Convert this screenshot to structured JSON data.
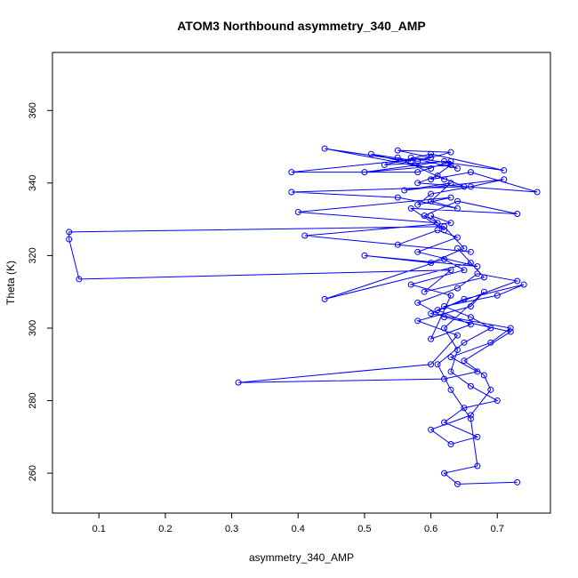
{
  "chart_data": {
    "type": "line",
    "title": "ATOM3 Northbound asymmetry_340_AMP",
    "xlabel": "asymmetry_340_AMP",
    "ylabel": "Theta (K)",
    "xlim": [
      0.03,
      0.78
    ],
    "ylim": [
      249,
      376
    ],
    "xticks": [
      0.1,
      0.2,
      0.3,
      0.4,
      0.5,
      0.6,
      0.7
    ],
    "yticks": [
      260,
      280,
      300,
      320,
      340,
      360
    ],
    "xtick_labels": [
      "0.1",
      "0.2",
      "0.3",
      "0.4",
      "0.5",
      "0.6",
      "0.7"
    ],
    "ytick_labels": [
      "260",
      "280",
      "300",
      "320",
      "340",
      "360"
    ],
    "grid": false,
    "series": [
      {
        "color": "#0000ff",
        "marker": "open-circle",
        "x": [
          0.73,
          0.64,
          0.62,
          0.67,
          0.66,
          0.63,
          0.61,
          0.65,
          0.69,
          0.66,
          0.62,
          0.7,
          0.74,
          0.65,
          0.6,
          0.72,
          0.69,
          0.63,
          0.67,
          0.62,
          0.31,
          0.6,
          0.64,
          0.58,
          0.66,
          0.68,
          0.62,
          0.64,
          0.63,
          0.66,
          0.7,
          0.65,
          0.62,
          0.67,
          0.63,
          0.6,
          0.66,
          0.69,
          0.68,
          0.65,
          0.72,
          0.62,
          0.58,
          0.64,
          0.67,
          0.73,
          0.61,
          0.66,
          0.6,
          0.63,
          0.57,
          0.65,
          0.62,
          0.44,
          0.66,
          0.64,
          0.68,
          0.59,
          0.63,
          0.07,
          0.055,
          0.055,
          0.62,
          0.65,
          0.6,
          0.5,
          0.67,
          0.58,
          0.64,
          0.61,
          0.55,
          0.66,
          0.41,
          0.63,
          0.6,
          0.62,
          0.57,
          0.73,
          0.64,
          0.59,
          0.61,
          0.4,
          0.63,
          0.58,
          0.6,
          0.66,
          0.71,
          0.56,
          0.63,
          0.6,
          0.64,
          0.55,
          0.39,
          0.65,
          0.61,
          0.58,
          0.76,
          0.66,
          0.6,
          0.63,
          0.5,
          0.62,
          0.64,
          0.57,
          0.71,
          0.6,
          0.53,
          0.63,
          0.58,
          0.39,
          0.6,
          0.55,
          0.63,
          0.58,
          0.51,
          0.6,
          0.44,
          0.57,
          0.55,
          0.62
        ],
        "y": [
          257.5,
          257,
          260,
          262,
          275,
          283,
          290,
          296,
          300,
          303,
          306,
          309,
          312,
          308,
          304,
          300,
          296,
          292,
          288,
          286,
          285,
          290,
          298,
          302,
          306,
          310,
          300,
          294,
          288,
          284,
          280,
          278,
          274,
          270,
          268,
          272,
          276,
          283,
          287,
          291,
          299,
          303,
          307,
          311,
          315,
          313,
          305,
          301,
          297,
          309,
          312,
          316,
          319,
          308,
          318,
          322,
          314,
          310,
          316,
          313.5,
          324.5,
          326.5,
          328,
          322,
          318,
          320,
          317,
          321,
          325,
          327,
          323,
          321,
          325.5,
          329,
          331,
          327,
          333,
          331.5,
          335,
          331,
          329,
          332,
          336,
          334,
          337,
          339,
          341,
          338,
          340,
          335,
          333,
          336,
          337.5,
          339,
          342,
          340,
          337.5,
          343,
          341,
          345,
          343,
          346,
          344,
          347,
          343.5,
          348,
          345,
          346,
          343,
          343,
          347,
          349,
          348.5,
          346,
          348,
          344,
          349.5,
          346,
          347,
          341
        ]
      }
    ]
  }
}
